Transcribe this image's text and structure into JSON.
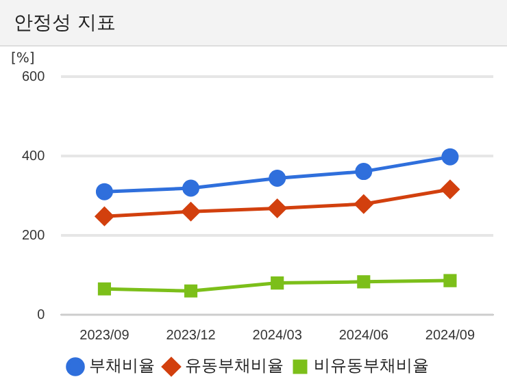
{
  "chart_data": {
    "type": "line",
    "title": "안정성 지표",
    "ylabel": "[%]",
    "categories": [
      "2023/09",
      "2023/12",
      "2024/03",
      "2024/06",
      "2024/09"
    ],
    "series": [
      {
        "name": "부채비율",
        "color": "#2f6fdc",
        "marker": "circle",
        "values": [
          310,
          319,
          344,
          361,
          398
        ]
      },
      {
        "name": "유동부채비율",
        "color": "#d2400e",
        "marker": "diamond",
        "values": [
          248,
          260,
          268,
          279,
          316
        ]
      },
      {
        "name": "비유동부채비율",
        "color": "#7cbf1a",
        "marker": "square",
        "values": [
          65,
          60,
          80,
          83,
          86
        ]
      }
    ],
    "ylim": [
      0,
      600
    ],
    "yticks": [
      0,
      200,
      400,
      600
    ],
    "grid": "y",
    "legend": "bottom"
  }
}
